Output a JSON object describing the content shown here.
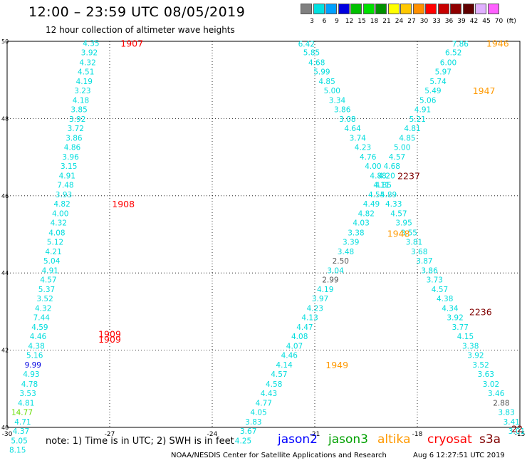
{
  "header": {
    "title": "12:00 – 23:59 UTC 08/05/2019",
    "subtitle": "12 hour collection of altimeter wave heights"
  },
  "color_scale": {
    "unit": "(ft)",
    "steps": [
      {
        "label": "3",
        "color": "#808080"
      },
      {
        "label": "6",
        "color": "#00e0e0"
      },
      {
        "label": "9",
        "color": "#00a0ff"
      },
      {
        "label": "12",
        "color": "#0000e0"
      },
      {
        "label": "15",
        "color": "#00c000"
      },
      {
        "label": "18",
        "color": "#00e000"
      },
      {
        "label": "21",
        "color": "#009000"
      },
      {
        "label": "24",
        "color": "#ffff00"
      },
      {
        "label": "27",
        "color": "#ffc800"
      },
      {
        "label": "30",
        "color": "#ff9000"
      },
      {
        "label": "33",
        "color": "#ff0000"
      },
      {
        "label": "36",
        "color": "#c80000"
      },
      {
        "label": "39",
        "color": "#900000"
      },
      {
        "label": "42",
        "color": "#600000"
      },
      {
        "label": "45",
        "color": "#e0b0ff"
      },
      {
        "label": "70",
        "color": "#ff60ff"
      }
    ]
  },
  "footer": {
    "note": "note:  1) Time is in UTC;  2) SWH is in feet",
    "satellites": [
      {
        "name": "jason2",
        "color": "#0000ff"
      },
      {
        "name": "jason3",
        "color": "#00a000"
      },
      {
        "name": "altika",
        "color": "#ff9900"
      },
      {
        "name": "cryosat",
        "color": "#ff0000"
      },
      {
        "name": "s3a",
        "color": "#800000"
      }
    ],
    "credit": "NOAA/NESDIS Center for Satellite Applications and Research",
    "timestamp": "Aug  6 12:27:51 UTC 2019"
  },
  "chart_data": {
    "type": "scatter",
    "x_range": [
      -30,
      -15
    ],
    "y_range": [
      40,
      50
    ],
    "x_ticks": [
      "-30",
      "-27",
      "-24",
      "-21",
      "-18",
      "-15"
    ],
    "y_ticks": [
      "40",
      "42",
      "44",
      "46",
      "48",
      "50"
    ],
    "x_tick_values": [
      -30,
      -27,
      -24,
      -21,
      -18,
      -15
    ],
    "y_tick_values": [
      40,
      42,
      44,
      46,
      48,
      50
    ],
    "grid": true,
    "tracks": [
      {
        "satellite": "jason2",
        "time": "1907",
        "points": [
          {
            "lon": -27.3,
            "lat": 49.95,
            "v": "4.35"
          },
          {
            "lon": -27.35,
            "lat": 49.71,
            "v": "3.92"
          },
          {
            "lon": -27.4,
            "lat": 49.46,
            "v": "4.32"
          },
          {
            "lon": -27.45,
            "lat": 49.22,
            "v": "4.51"
          },
          {
            "lon": -27.5,
            "lat": 48.97,
            "v": "4.19"
          },
          {
            "lon": -27.55,
            "lat": 48.73,
            "v": "3.23"
          },
          {
            "lon": -27.6,
            "lat": 48.48,
            "v": "4.18"
          },
          {
            "lon": -27.65,
            "lat": 48.24,
            "v": "3.85"
          },
          {
            "lon": -27.7,
            "lat": 47.99,
            "v": "3.92"
          },
          {
            "lon": -27.75,
            "lat": 47.75,
            "v": "3.72"
          },
          {
            "lon": -27.8,
            "lat": 47.5,
            "v": "3.86"
          },
          {
            "lon": -27.85,
            "lat": 47.26,
            "v": "4.86"
          },
          {
            "lon": -27.9,
            "lat": 47.01,
            "v": "3.96"
          },
          {
            "lon": -27.95,
            "lat": 46.77,
            "v": "3.15"
          },
          {
            "lon": -28.0,
            "lat": 46.52,
            "v": "4.91"
          },
          {
            "lon": -28.05,
            "lat": 46.28,
            "v": "7.48"
          },
          {
            "lon": -28.1,
            "lat": 46.03,
            "v": "3.93"
          },
          {
            "lon": -28.15,
            "lat": 45.79,
            "v": "4.82"
          }
        ]
      },
      {
        "satellite": "jason2",
        "time": "1908",
        "points": [
          {
            "lon": -28.2,
            "lat": 45.54,
            "v": "4.00"
          },
          {
            "lon": -28.25,
            "lat": 45.3,
            "v": "4.32"
          },
          {
            "lon": -28.3,
            "lat": 45.05,
            "v": "4.08"
          },
          {
            "lon": -28.35,
            "lat": 44.81,
            "v": "5.12"
          },
          {
            "lon": -28.4,
            "lat": 44.56,
            "v": "4.21"
          },
          {
            "lon": -28.45,
            "lat": 44.32,
            "v": "5.04"
          },
          {
            "lon": -28.5,
            "lat": 44.07,
            "v": "4.91"
          },
          {
            "lon": -28.55,
            "lat": 43.83,
            "v": "4.57"
          },
          {
            "lon": -28.6,
            "lat": 43.58,
            "v": "5.37"
          },
          {
            "lon": -28.65,
            "lat": 43.34,
            "v": "3.52"
          },
          {
            "lon": -28.7,
            "lat": 43.09,
            "v": "4.32"
          },
          {
            "lon": -28.75,
            "lat": 42.85,
            "v": "7.44"
          },
          {
            "lon": -28.8,
            "lat": 42.6,
            "v": "4.59"
          },
          {
            "lon": -28.85,
            "lat": 42.36,
            "v": "4.46"
          },
          {
            "lon": -28.9,
            "lat": 42.11,
            "v": "4.38"
          }
        ]
      },
      {
        "satellite": "jason2",
        "time": "1909",
        "points": [
          {
            "lon": -28.95,
            "lat": 41.87,
            "v": "5.16"
          },
          {
            "lon": -29.0,
            "lat": 41.62,
            "v": "9.99"
          },
          {
            "lon": -29.05,
            "lat": 41.38,
            "v": "4.93"
          },
          {
            "lon": -29.1,
            "lat": 41.13,
            "v": "4.78"
          },
          {
            "lon": -29.15,
            "lat": 40.89,
            "v": "3.53"
          },
          {
            "lon": -29.2,
            "lat": 40.64,
            "v": "4.81"
          },
          {
            "lon": -29.25,
            "lat": 40.4,
            "v": "14.77"
          },
          {
            "lon": -29.3,
            "lat": 40.15,
            "v": "4.71"
          },
          {
            "lon": -29.35,
            "lat": 39.91,
            "v": "4.37"
          },
          {
            "lon": -29.4,
            "lat": 39.66,
            "v": "5.05"
          },
          {
            "lon": -29.45,
            "lat": 39.42,
            "v": "8.15"
          }
        ]
      },
      {
        "satellite": "jason2",
        "time": "1946/1947/1948/1949",
        "points": [
          {
            "lon": -16.5,
            "lat": 49.94,
            "v": "7.86"
          },
          {
            "lon": -16.7,
            "lat": 49.71,
            "v": "6.52"
          },
          {
            "lon": -16.85,
            "lat": 49.46,
            "v": "6.00"
          },
          {
            "lon": -17.0,
            "lat": 49.22,
            "v": "5.97"
          },
          {
            "lon": -17.15,
            "lat": 48.97,
            "v": "5.74"
          },
          {
            "lon": -17.3,
            "lat": 48.73,
            "v": "5.49"
          },
          {
            "lon": -17.45,
            "lat": 48.48,
            "v": "5.06"
          },
          {
            "lon": -17.6,
            "lat": 48.24,
            "v": "4.91"
          },
          {
            "lon": -17.75,
            "lat": 47.99,
            "v": "5.21"
          },
          {
            "lon": -17.9,
            "lat": 47.75,
            "v": "4.81"
          },
          {
            "lon": -18.05,
            "lat": 47.5,
            "v": "4.85"
          },
          {
            "lon": -18.2,
            "lat": 47.26,
            "v": "5.00"
          },
          {
            "lon": -18.35,
            "lat": 47.01,
            "v": "4.57"
          },
          {
            "lon": -18.5,
            "lat": 46.77,
            "v": "4.68"
          },
          {
            "lon": -18.65,
            "lat": 46.52,
            "v": "4.20"
          },
          {
            "lon": -18.8,
            "lat": 46.28,
            "v": "4.11"
          },
          {
            "lon": -18.95,
            "lat": 46.03,
            "v": "4.55"
          },
          {
            "lon": -19.1,
            "lat": 45.79,
            "v": "4.49"
          },
          {
            "lon": -19.25,
            "lat": 45.54,
            "v": "4.82"
          },
          {
            "lon": -19.4,
            "lat": 45.3,
            "v": "4.03"
          },
          {
            "lon": -19.55,
            "lat": 45.05,
            "v": "3.38"
          },
          {
            "lon": -19.7,
            "lat": 44.81,
            "v": "3.39"
          },
          {
            "lon": -19.85,
            "lat": 44.56,
            "v": "3.48"
          },
          {
            "lon": -20.0,
            "lat": 44.32,
            "v": "2.50"
          },
          {
            "lon": -20.15,
            "lat": 44.07,
            "v": "3.04"
          },
          {
            "lon": -20.3,
            "lat": 43.83,
            "v": "2.99"
          },
          {
            "lon": -20.45,
            "lat": 43.58,
            "v": "4.19"
          },
          {
            "lon": -20.6,
            "lat": 43.34,
            "v": "3.97"
          },
          {
            "lon": -20.75,
            "lat": 43.09,
            "v": "4.23"
          },
          {
            "lon": -20.9,
            "lat": 42.85,
            "v": "4.13"
          },
          {
            "lon": -21.05,
            "lat": 42.6,
            "v": "4.47"
          },
          {
            "lon": -21.2,
            "lat": 42.36,
            "v": "4.08"
          },
          {
            "lon": -21.35,
            "lat": 42.11,
            "v": "4.07"
          },
          {
            "lon": -21.5,
            "lat": 41.87,
            "v": "4.46"
          },
          {
            "lon": -21.65,
            "lat": 41.62,
            "v": "4.14"
          },
          {
            "lon": -21.8,
            "lat": 41.38,
            "v": "4.57"
          },
          {
            "lon": -21.95,
            "lat": 41.13,
            "v": "4.58"
          },
          {
            "lon": -22.1,
            "lat": 40.89,
            "v": "4.43"
          },
          {
            "lon": -22.25,
            "lat": 40.64,
            "v": "4.77"
          },
          {
            "lon": -22.4,
            "lat": 40.4,
            "v": "4.05"
          },
          {
            "lon": -22.55,
            "lat": 40.15,
            "v": "3.83"
          },
          {
            "lon": -22.7,
            "lat": 39.91,
            "v": "3.67"
          },
          {
            "lon": -22.85,
            "lat": 39.66,
            "v": "4.25"
          }
        ]
      },
      {
        "satellite": "altika",
        "time": "2236/2237",
        "points": [
          {
            "lon": -21.0,
            "lat": 49.94,
            "v": "6.42"
          },
          {
            "lon": -20.85,
            "lat": 49.71,
            "v": "5.85"
          },
          {
            "lon": -20.7,
            "lat": 49.46,
            "v": "4.68"
          },
          {
            "lon": -20.55,
            "lat": 49.22,
            "v": "5.99"
          },
          {
            "lon": -20.4,
            "lat": 48.97,
            "v": "4.85"
          },
          {
            "lon": -20.25,
            "lat": 48.73,
            "v": "5.00"
          },
          {
            "lon": -20.1,
            "lat": 48.48,
            "v": "3.34"
          },
          {
            "lon": -19.95,
            "lat": 48.24,
            "v": "3.86"
          },
          {
            "lon": -19.8,
            "lat": 47.99,
            "v": "3.08"
          },
          {
            "lon": -19.65,
            "lat": 47.75,
            "v": "4.64"
          },
          {
            "lon": -19.5,
            "lat": 47.5,
            "v": "3.74"
          },
          {
            "lon": -19.35,
            "lat": 47.26,
            "v": "4.23"
          },
          {
            "lon": -19.2,
            "lat": 47.01,
            "v": "4.76"
          },
          {
            "lon": -19.05,
            "lat": 46.77,
            "v": "4.00"
          },
          {
            "lon": -18.9,
            "lat": 46.52,
            "v": "4.88"
          },
          {
            "lon": -18.75,
            "lat": 46.28,
            "v": "4.85"
          },
          {
            "lon": -18.6,
            "lat": 46.03,
            "v": "4.89"
          },
          {
            "lon": -18.45,
            "lat": 45.79,
            "v": "4.33"
          },
          {
            "lon": -18.3,
            "lat": 45.54,
            "v": "4.57"
          },
          {
            "lon": -18.15,
            "lat": 45.3,
            "v": "3.95"
          },
          {
            "lon": -18.0,
            "lat": 45.05,
            "v": "3.55"
          },
          {
            "lon": -17.85,
            "lat": 44.81,
            "v": "3.81"
          },
          {
            "lon": -17.7,
            "lat": 44.56,
            "v": "3.68"
          },
          {
            "lon": -17.55,
            "lat": 44.32,
            "v": "3.87"
          },
          {
            "lon": -17.4,
            "lat": 44.07,
            "v": "3.86"
          },
          {
            "lon": -17.25,
            "lat": 43.83,
            "v": "3.73"
          },
          {
            "lon": -17.1,
            "lat": 43.58,
            "v": "4.57"
          },
          {
            "lon": -16.95,
            "lat": 43.34,
            "v": "4.38"
          },
          {
            "lon": -16.8,
            "lat": 43.09,
            "v": "4.34"
          },
          {
            "lon": -16.65,
            "lat": 42.85,
            "v": "3.92"
          },
          {
            "lon": -16.5,
            "lat": 42.6,
            "v": "3.77"
          },
          {
            "lon": -16.35,
            "lat": 42.36,
            "v": "4.15"
          },
          {
            "lon": -16.2,
            "lat": 42.11,
            "v": "3.38"
          },
          {
            "lon": -16.05,
            "lat": 41.87,
            "v": "3.92"
          },
          {
            "lon": -15.9,
            "lat": 41.62,
            "v": "3.52"
          },
          {
            "lon": -15.75,
            "lat": 41.38,
            "v": "3.63"
          },
          {
            "lon": -15.6,
            "lat": 41.13,
            "v": "3.02"
          },
          {
            "lon": -15.45,
            "lat": 40.89,
            "v": "3.46"
          },
          {
            "lon": -15.3,
            "lat": 40.64,
            "v": "2.88"
          },
          {
            "lon": -15.15,
            "lat": 40.4,
            "v": "3.83"
          },
          {
            "lon": -15.0,
            "lat": 40.15,
            "v": "3.41"
          },
          {
            "lon": -14.85,
            "lat": 39.91,
            "v": "3.01"
          }
        ]
      }
    ],
    "time_labels": [
      {
        "text": "1907",
        "lon": -26.35,
        "lat": 49.95,
        "color": "#ff0000"
      },
      {
        "text": "1908",
        "lon": -26.6,
        "lat": 45.79,
        "color": "#ff0000"
      },
      {
        "text": "1909",
        "lon": -27.0,
        "lat": 42.43,
        "color": "#ff0000"
      },
      {
        "text": "1909",
        "lon": -27.0,
        "lat": 42.29,
        "color": "#ff0000"
      },
      {
        "text": "1946",
        "lon": -15.65,
        "lat": 49.95,
        "color": "#ff9900"
      },
      {
        "text": "1947",
        "lon": -16.05,
        "lat": 48.73,
        "color": "#ff9900"
      },
      {
        "text": "1948",
        "lon": -18.55,
        "lat": 45.03,
        "color": "#ff9900"
      },
      {
        "text": "1949",
        "lon": -20.35,
        "lat": 41.62,
        "color": "#ff9900"
      },
      {
        "text": "2236",
        "lon": -16.15,
        "lat": 43.0,
        "color": "#800000"
      },
      {
        "text": "2237",
        "lon": -18.25,
        "lat": 46.52,
        "color": "#800000"
      },
      {
        "text": "22",
        "lon": -15.08,
        "lat": 39.97,
        "color": "#800000"
      }
    ],
    "value_colors": {
      "default": "#00dddd",
      "low": "#555555",
      "blue": "#0000e0",
      "green": "#66dd00"
    }
  }
}
